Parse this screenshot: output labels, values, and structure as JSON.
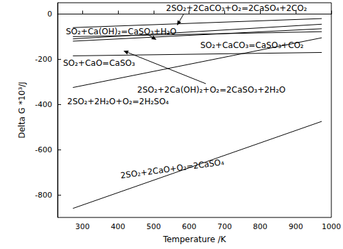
{
  "chart_data": {
    "type": "line",
    "x_label": "Temperature /K",
    "y_label": "Delta G *10³/J",
    "x": [
      273,
      973
    ],
    "xlim": [
      230,
      1000
    ],
    "xticks": [
      300,
      400,
      500,
      600,
      700,
      800,
      900,
      1000
    ],
    "ylim": [
      -900,
      50
    ],
    "yticks": [
      -800,
      -600,
      -400,
      -200,
      0
    ],
    "grid": false,
    "reference_line": {
      "y": 0,
      "line_style": "dashdot"
    },
    "series": [
      {
        "name": "2SO₂+2CaCO₃+O₂=2CaSO₄+2CO₂",
        "color": "#000000",
        "values": [
          -60,
          -20
        ]
      },
      {
        "name": "SO₂+Ca(OH)₂=CaSO₃+H₂O",
        "color": "#000000",
        "values": [
          -120,
          -65
        ]
      },
      {
        "name": "SO₂+CaCO₃=CaSO₃+CO₂",
        "color": "#000000",
        "values": [
          -110,
          -45
        ]
      },
      {
        "name": "SO₂+CaO=CaSO₃",
        "color": "#000000",
        "values": [
          -185,
          -170
        ]
      },
      {
        "name": "2SO₂+2H₂O+O₂=2H₂SO₄",
        "color": "#000000",
        "values": [
          -325,
          -105
        ]
      },
      {
        "name": "2SO₂+2Ca(OH)₂+O₂=2CaSO₃+2H₂O",
        "color": "#000000",
        "values": [
          -100,
          -78
        ]
      },
      {
        "name": "2SO₂+2CaO+O₂=2CaSO₄",
        "color": "#000000",
        "values": [
          -860,
          -475
        ]
      }
    ]
  }
}
